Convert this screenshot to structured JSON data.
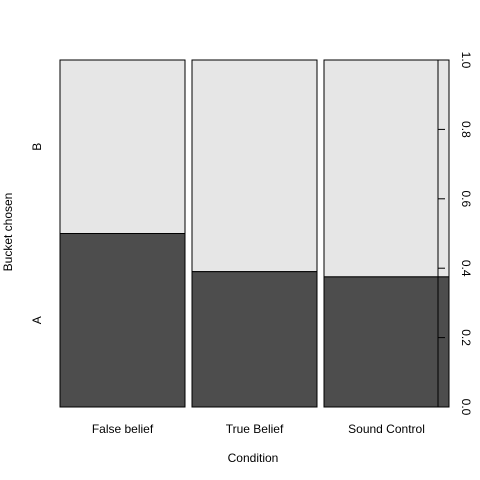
{
  "chart_data": {
    "type": "bar",
    "subtype": "spineplot",
    "xlabel": "Condition",
    "ylabel": "Bucket chosen",
    "categories": [
      "False belief",
      "True Belief",
      "Sound Control"
    ],
    "levels": [
      "A",
      "B"
    ],
    "series": [
      {
        "name": "A",
        "values": [
          0.5,
          0.39,
          0.375
        ]
      },
      {
        "name": "B",
        "values": [
          0.5,
          0.61,
          0.625
        ]
      }
    ],
    "right_axis": {
      "ylim": [
        0,
        1
      ],
      "ticks": [
        0.0,
        0.2,
        0.4,
        0.6,
        0.8,
        1.0
      ],
      "tick_labels": [
        "0.0",
        "0.2",
        "0.4",
        "0.6",
        "0.8",
        "1.0"
      ]
    },
    "colors": {
      "A": "#4d4d4d",
      "B": "#e6e6e6",
      "outline": "#000000"
    },
    "grid": false,
    "legend": "none"
  }
}
